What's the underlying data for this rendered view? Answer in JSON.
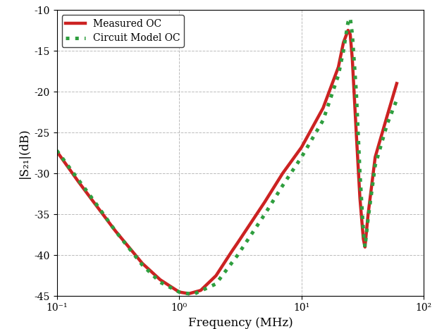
{
  "chart_data": {
    "type": "line",
    "xlabel": "Frequency (MHz)",
    "ylabel": "|S₂₁|(dB)",
    "log": "x",
    "grid": true,
    "legend": "upper left",
    "xlim": [
      0.1,
      100
    ],
    "xticks": [
      {
        "value": 0.1,
        "label": "10⁻¹"
      },
      {
        "value": 1,
        "label": "10⁰"
      },
      {
        "value": 10,
        "label": "10¹"
      },
      {
        "value": 100,
        "label": "10²"
      }
    ],
    "ylim": [
      -45,
      -10
    ],
    "yticks": [
      -45,
      -40,
      -35,
      -30,
      -25,
      -20,
      -15,
      -10
    ],
    "series": [
      {
        "name": "Measured OC",
        "color": "#cc2222",
        "line_style": "solid",
        "x": [
          0.1,
          0.15,
          0.2,
          0.3,
          0.5,
          0.7,
          1.0,
          1.2,
          1.5,
          2,
          2.7,
          3,
          5,
          7,
          10,
          15,
          20,
          22,
          24,
          25,
          26,
          28,
          30,
          32,
          33,
          35,
          40,
          50,
          60
        ],
        "values": [
          -27.3,
          -31,
          -33.5,
          -37,
          -41,
          -43,
          -44.5,
          -44.7,
          -44.3,
          -42.5,
          -39.5,
          -38.5,
          -33.5,
          -30,
          -26.8,
          -22,
          -17,
          -14,
          -12.5,
          -13,
          -16,
          -25,
          -33,
          -38,
          -39,
          -35,
          -28,
          -23,
          -19
        ]
      },
      {
        "name": "Circuit Model OC",
        "color": "#2e9e3e",
        "line_style": "dotted",
        "x": [
          0.1,
          0.2,
          0.3,
          0.5,
          0.7,
          1.0,
          1.3,
          2,
          3,
          5,
          7,
          10,
          15,
          20,
          22,
          24,
          25,
          26,
          28,
          30,
          32,
          33,
          35,
          40,
          50,
          60
        ],
        "values": [
          -27.2,
          -33.3,
          -37,
          -41.2,
          -43.3,
          -44.5,
          -44.8,
          -43.5,
          -40,
          -35,
          -31.5,
          -28,
          -23.5,
          -18,
          -15,
          -11.5,
          -11,
          -13,
          -20,
          -30,
          -37,
          -39,
          -35.5,
          -29,
          -24,
          -21
        ]
      }
    ]
  }
}
